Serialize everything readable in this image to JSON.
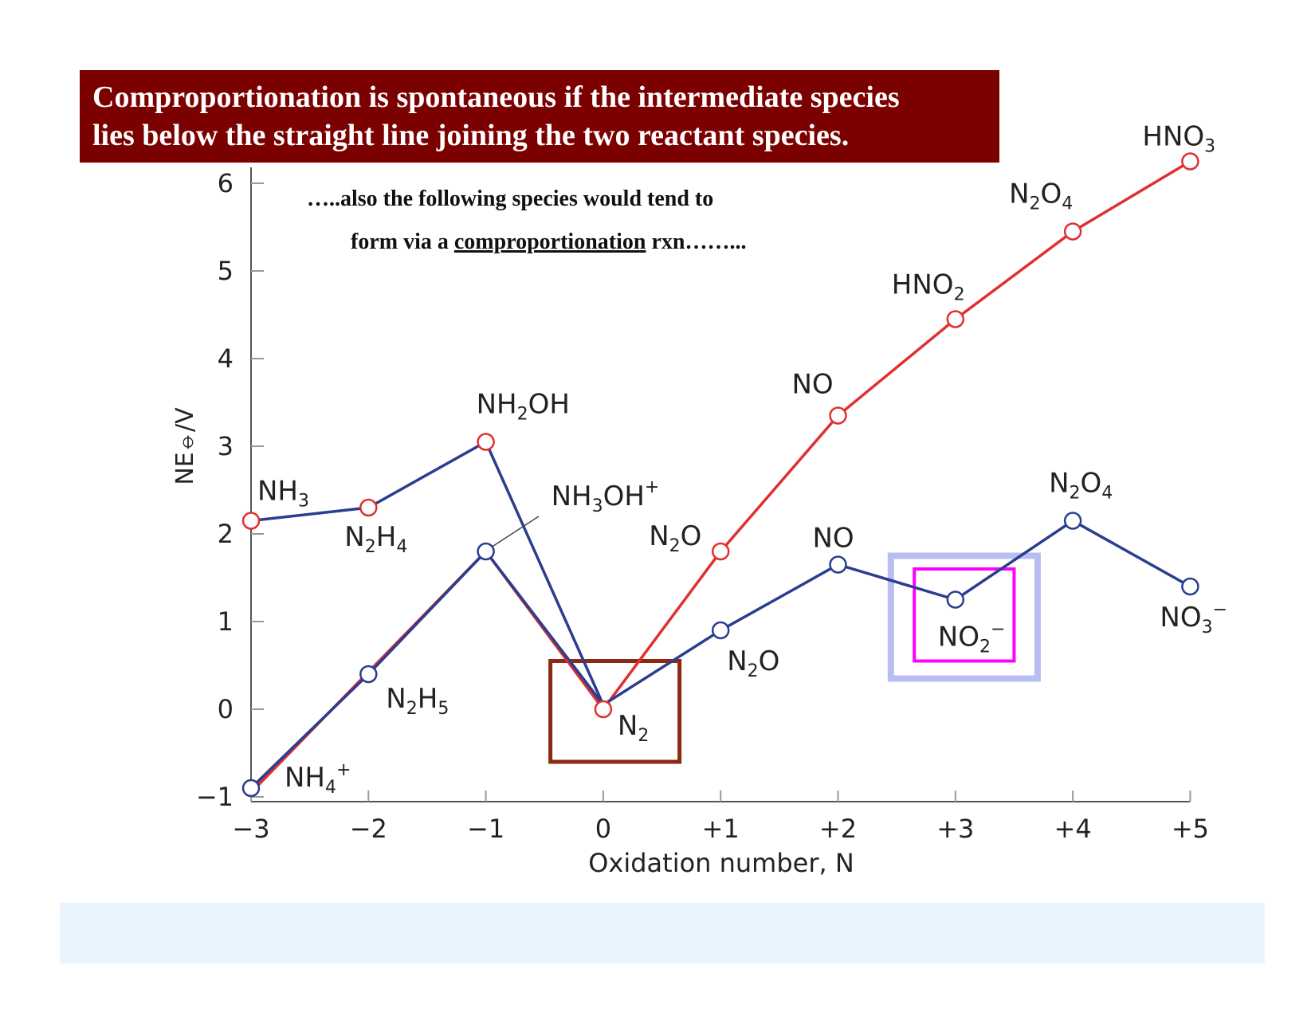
{
  "banner": {
    "line1": "Comproportionation is spontaneous if the intermediate species",
    "line2": "lies below the straight line joining the two reactant species."
  },
  "note": {
    "line1": "…..also the following species would tend to",
    "line2_prefix": "form via a ",
    "line2_underlined": "comproportionation",
    "line2_suffix": " rxn……..."
  },
  "colors": {
    "banner_bg": "#7b0000",
    "acid_series": "#e03030",
    "base_series": "#2b3d8f",
    "highlight_n2_box": "#8b2a10",
    "highlight_no2_outer": "#b8bff0",
    "highlight_no2_inner": "#ff00ff",
    "bottom_bar": "#eaf4fd"
  },
  "chart_data": {
    "type": "line",
    "xlabel": "Oxidation number, N",
    "ylabel": "NE⦵/V",
    "x_ticks": [
      "−3",
      "−2",
      "−1",
      "0",
      "+1",
      "+2",
      "+3",
      "+4",
      "+5"
    ],
    "y_ticks": [
      "−1",
      "0",
      "1",
      "2",
      "3",
      "4",
      "5",
      "6"
    ],
    "xlim": [
      -3,
      5
    ],
    "ylim": [
      -1,
      6
    ],
    "series": [
      {
        "key": "acid",
        "color": "#e03030",
        "points": [
          {
            "x": -3,
            "y": -0.95
          },
          {
            "x": -1,
            "y": 1.8
          },
          {
            "x": 0,
            "y": 0
          },
          {
            "x": 1,
            "y": 1.8
          },
          {
            "x": 2,
            "y": 3.35
          },
          {
            "x": 3,
            "y": 4.45
          },
          {
            "x": 4,
            "y": 5.45
          },
          {
            "x": 5,
            "y": 6.25
          }
        ]
      },
      {
        "key": "base",
        "color": "#2b3d8f",
        "points": [
          {
            "x": -3,
            "y": -0.9
          },
          {
            "x": -2,
            "y": 0.4
          },
          {
            "x": -1,
            "y": 1.8
          },
          {
            "x": 0,
            "y": 0.05
          },
          {
            "x": 1,
            "y": 0.9
          },
          {
            "x": 2,
            "y": 1.65
          },
          {
            "x": 3,
            "y": 1.25
          },
          {
            "x": 4,
            "y": 2.15
          },
          {
            "x": 5,
            "y": 1.4
          }
        ]
      },
      {
        "key": "ammonia",
        "color": "#2b3d8f",
        "points": [
          {
            "x": -3,
            "y": 2.15
          },
          {
            "x": -2,
            "y": 2.3
          },
          {
            "x": -1,
            "y": 3.05
          },
          {
            "x": 0,
            "y": 0.05
          }
        ]
      }
    ],
    "markers": [
      {
        "x": -3,
        "y": 2.15,
        "color": "#e03030"
      },
      {
        "x": -2,
        "y": 2.3,
        "color": "#e03030"
      },
      {
        "x": -1,
        "y": 3.05,
        "color": "#e03030"
      },
      {
        "x": -3,
        "y": -0.9,
        "color": "#2b3d8f"
      },
      {
        "x": -2,
        "y": 0.4,
        "color": "#2b3d8f"
      },
      {
        "x": -1,
        "y": 1.8,
        "color": "#2b3d8f"
      },
      {
        "x": 0,
        "y": 0,
        "color": "#e03030"
      },
      {
        "x": 1,
        "y": 1.8,
        "color": "#e03030"
      },
      {
        "x": 2,
        "y": 3.35,
        "color": "#e03030"
      },
      {
        "x": 3,
        "y": 4.45,
        "color": "#e03030"
      },
      {
        "x": 4,
        "y": 5.45,
        "color": "#e03030"
      },
      {
        "x": 5,
        "y": 6.25,
        "color": "#e03030"
      },
      {
        "x": 1,
        "y": 0.9,
        "color": "#2b3d8f"
      },
      {
        "x": 2,
        "y": 1.65,
        "color": "#2b3d8f"
      },
      {
        "x": 3,
        "y": 1.25,
        "color": "#2b3d8f"
      },
      {
        "x": 4,
        "y": 2.15,
        "color": "#2b3d8f"
      },
      {
        "x": 5,
        "y": 1.4,
        "color": "#2b3d8f"
      }
    ],
    "species_labels": [
      {
        "base": "NH",
        "sub": "3",
        "sup": "",
        "x": -3,
        "y": 2.15
      },
      {
        "base": "N",
        "sub": "2",
        "mid": "H",
        "sub2": "4",
        "x": -2,
        "y": 2.3
      },
      {
        "base": "NH",
        "sub": "2",
        "mid": "OH",
        "x": -1,
        "y": 3.05
      },
      {
        "base": "NH",
        "sub": "3",
        "mid": "OH",
        "sup": "+",
        "x": -1,
        "y": 1.8
      },
      {
        "base": "N",
        "sub": "2",
        "mid": "H",
        "sub2": "5",
        "x": -2,
        "y": 0.4
      },
      {
        "base": "NH",
        "sub": "4",
        "sup": "+",
        "x": -3,
        "y": -0.9
      },
      {
        "base": "N",
        "sub": "2",
        "x": 0,
        "y": 0
      },
      {
        "base": "N",
        "sub": "2",
        "mid": "O",
        "x": 1,
        "y": 1.8
      },
      {
        "base": "N",
        "sub": "2",
        "mid": "O",
        "x": 1,
        "y": 0.9
      },
      {
        "base": "NO",
        "x": 2,
        "y": 3.35
      },
      {
        "base": "NO",
        "x": 2,
        "y": 1.65
      },
      {
        "base": "HNO",
        "sub": "2",
        "x": 3,
        "y": 4.45
      },
      {
        "base": "NO",
        "sub": "2",
        "sup": "−",
        "x": 3,
        "y": 1.25
      },
      {
        "base": "N",
        "sub": "2",
        "mid": "O",
        "sub2": "4",
        "x": 4,
        "y": 5.45
      },
      {
        "base": "N",
        "sub": "2",
        "mid": "O",
        "sub2": "4",
        "x": 4,
        "y": 2.15
      },
      {
        "base": "HNO",
        "sub": "3",
        "x": 5,
        "y": 6.25
      },
      {
        "base": "NO",
        "sub": "3",
        "sup": "−",
        "x": 5,
        "y": 1.4
      }
    ],
    "highlights": [
      "N₂",
      "NO₂⁻"
    ]
  }
}
